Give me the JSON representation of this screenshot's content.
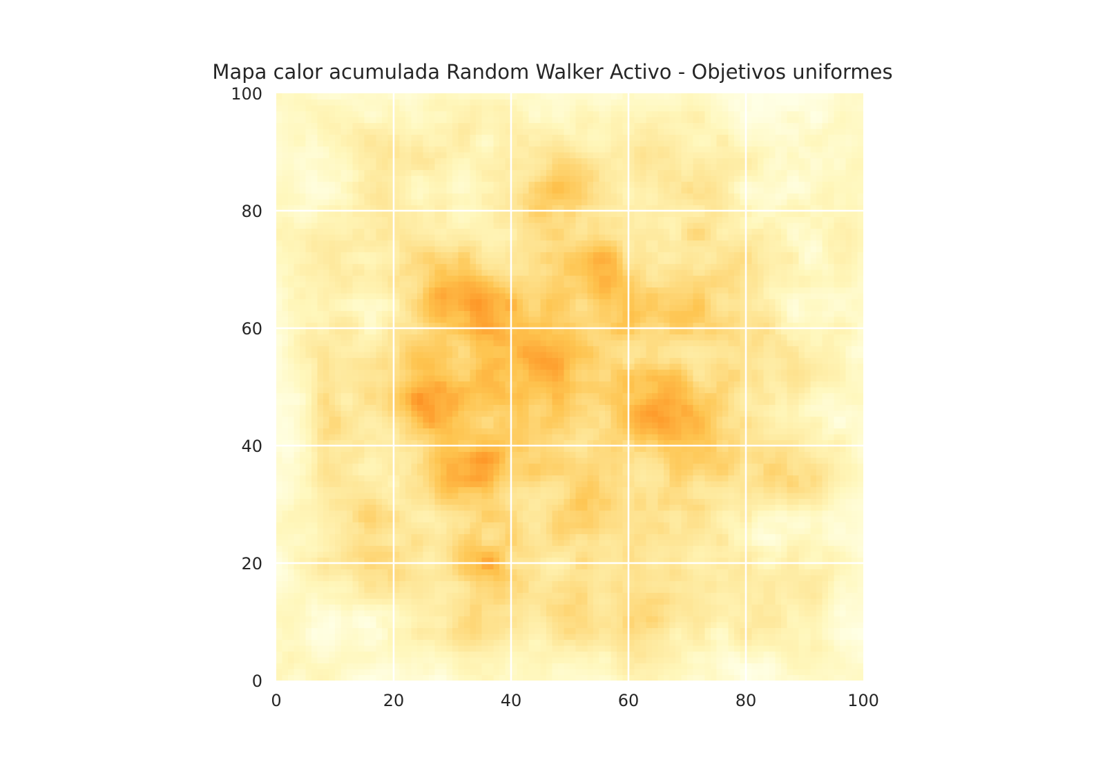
{
  "chart_data": {
    "type": "heatmap",
    "title": "Mapa calor acumulada Random Walker Activo - Objetivos uniformes",
    "xlabel": "",
    "ylabel": "",
    "xlim": [
      0,
      100
    ],
    "ylim": [
      0,
      100
    ],
    "xticks": [
      0,
      20,
      40,
      60,
      80,
      100
    ],
    "yticks": [
      0,
      20,
      40,
      60,
      80,
      100
    ],
    "xtick_labels": [
      "0",
      "20",
      "40",
      "60",
      "80",
      "100"
    ],
    "ytick_labels": [
      "0",
      "20",
      "40",
      "60",
      "80",
      "100"
    ],
    "grid": true,
    "colormap": "YlOrBr",
    "colors": {
      "low": "#ffffe5",
      "mid_low": "#fee391",
      "mid": "#fe9929",
      "mid_high": "#cc4c02",
      "high": "#662506",
      "grid": "#ffffff",
      "text": "#262626"
    },
    "hotspots": [
      {
        "x": 26,
        "y": 48,
        "intensity": 1.0
      },
      {
        "x": 33,
        "y": 66,
        "intensity": 0.85
      },
      {
        "x": 31,
        "y": 36,
        "intensity": 0.8
      },
      {
        "x": 50,
        "y": 85,
        "intensity": 0.75
      },
      {
        "x": 65,
        "y": 46,
        "intensity": 0.7
      },
      {
        "x": 72,
        "y": 44,
        "intensity": 0.7
      },
      {
        "x": 37,
        "y": 21,
        "intensity": 0.6
      },
      {
        "x": 15,
        "y": 26,
        "intensity": 0.55
      },
      {
        "x": 85,
        "y": 35,
        "intensity": 0.55
      },
      {
        "x": 13,
        "y": 92,
        "intensity": 0.45
      },
      {
        "x": 47,
        "y": 14,
        "intensity": 0.45
      },
      {
        "x": 57,
        "y": 70,
        "intensity": 0.55
      },
      {
        "x": 45,
        "y": 52,
        "intensity": 0.5
      },
      {
        "x": 80,
        "y": 55,
        "intensity": 0.45
      },
      {
        "x": 24,
        "y": 72,
        "intensity": 0.6
      },
      {
        "x": 63,
        "y": 12,
        "intensity": 0.4
      }
    ]
  }
}
